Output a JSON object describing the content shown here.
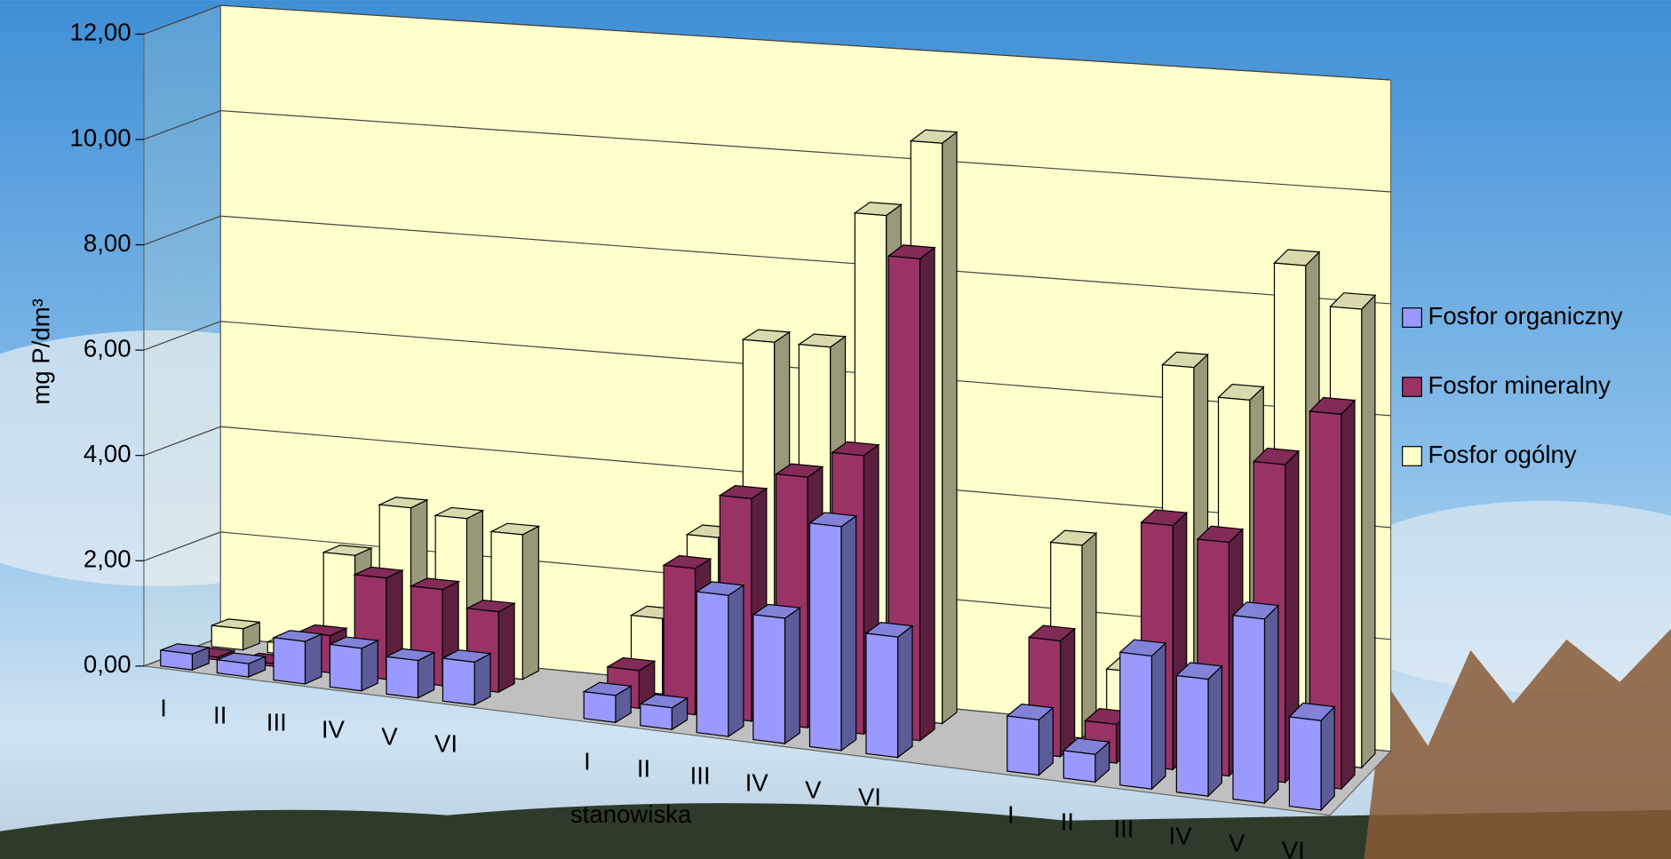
{
  "chart_data": {
    "type": "bar3d",
    "y_label": "mg P/dm³",
    "x_label": "stanowiska",
    "categories": [
      "I",
      "II",
      "III",
      "IV",
      "V",
      "VI",
      "I",
      "II",
      "III",
      "IV",
      "V",
      "VI",
      "I",
      "II",
      "III",
      "IV",
      "V",
      "VI"
    ],
    "series": [
      {
        "name": "Fosfor organiczny",
        "color": "#9999ff",
        "values": [
          0.3,
          0.25,
          0.8,
          0.8,
          0.7,
          0.8,
          0.5,
          0.4,
          2.6,
          2.3,
          4.1,
          2.2,
          1.0,
          0.5,
          2.4,
          2.1,
          3.3,
          1.6
        ]
      },
      {
        "name": "Fosfor mineralny",
        "color": "#993366",
        "values": [
          0.05,
          0.05,
          0.7,
          1.9,
          1.8,
          1.5,
          0.7,
          2.7,
          4.1,
          4.6,
          5.1,
          8.8,
          2.1,
          0.7,
          4.4,
          4.2,
          5.7,
          6.7
        ]
      },
      {
        "name": "Fosfor ogólny",
        "color": "#ffffcc",
        "values": [
          0.4,
          0.2,
          2.0,
          3.0,
          2.9,
          2.7,
          1.4,
          3.0,
          6.7,
          6.7,
          9.2,
          10.6,
          3.5,
          1.3,
          6.9,
          6.4,
          8.9,
          8.2
        ]
      }
    ],
    "ylim": [
      0,
      12
    ],
    "yticks": [
      {
        "value": 0,
        "label": "0,00"
      },
      {
        "value": 2,
        "label": "2,00"
      },
      {
        "value": 4,
        "label": "4,00"
      },
      {
        "value": 6,
        "label": "6,00"
      },
      {
        "value": 8,
        "label": "8,00"
      },
      {
        "value": 10,
        "label": "10,00"
      },
      {
        "value": 12,
        "label": "12,00"
      }
    ],
    "grid": true,
    "legend": "right"
  }
}
